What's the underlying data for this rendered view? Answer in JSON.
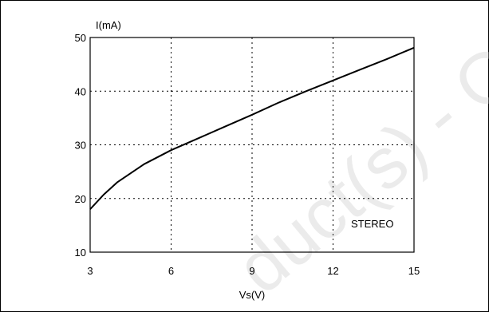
{
  "chart_data": {
    "type": "line",
    "title": "",
    "xlabel": "Vs(V)",
    "ylabel": "I(mA)",
    "xlim": [
      3,
      15
    ],
    "ylim": [
      10,
      50
    ],
    "xticks": [
      3,
      6,
      9,
      12,
      15
    ],
    "yticks": [
      10,
      20,
      30,
      40,
      50
    ],
    "grid": true,
    "annotation": "STEREO",
    "series": [
      {
        "x": [
          3,
          3.5,
          4,
          5,
          6,
          7,
          8,
          9,
          10,
          11,
          12,
          13,
          14,
          15
        ],
        "values": [
          18,
          20.7,
          23,
          26.4,
          29,
          31.2,
          33.4,
          35.6,
          37.9,
          40,
          42,
          44,
          46,
          48.1
        ]
      }
    ]
  },
  "watermark": "duct(s) - O",
  "colors": {
    "line": "#000000",
    "grid": "#000000",
    "frame": "#000000",
    "watermark": "#c8c8c8"
  }
}
